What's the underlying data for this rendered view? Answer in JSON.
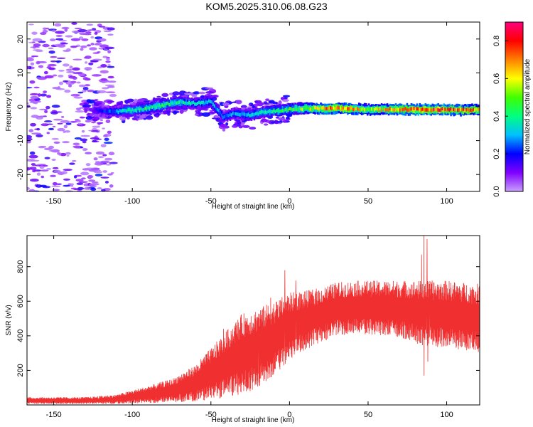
{
  "title": "KOM5.2025.310.06.08.G23",
  "colors": {
    "snr_line": "#f03030",
    "spec_low": "#c080ff"
  },
  "chart_data": [
    {
      "id": "spectrogram",
      "type": "heatmap",
      "xlabel": "Height of straight line (km)",
      "ylabel": "Frequency (Hz)",
      "xlim": [
        -167,
        121
      ],
      "ylim": [
        -25,
        25
      ],
      "xticks": [
        -150,
        -100,
        -50,
        0,
        50,
        100
      ],
      "yticks": [
        -20,
        -10,
        0,
        10,
        20
      ],
      "grid": false,
      "colorbar": {
        "label": "Normalized spectral amplitude",
        "range": [
          0,
          0.9
        ],
        "ticks": [
          0.0,
          0.2,
          0.4,
          0.6,
          0.8
        ],
        "colormap": [
          "#c8a0ff",
          "#8000ff",
          "#0000ff",
          "#00c0ff",
          "#00ff80",
          "#40ff00",
          "#ffff00",
          "#ff8000",
          "#ff0000",
          "#ff0080"
        ]
      },
      "ridge": [
        {
          "x": -125,
          "f": -1.0,
          "a": 0.15
        },
        {
          "x": -110,
          "f": -1.5,
          "a": 0.3
        },
        {
          "x": -100,
          "f": -1.0,
          "a": 0.4
        },
        {
          "x": -90,
          "f": -0.5,
          "a": 0.45
        },
        {
          "x": -80,
          "f": 0.5,
          "a": 0.45
        },
        {
          "x": -70,
          "f": 1.5,
          "a": 0.4
        },
        {
          "x": -60,
          "f": 1.0,
          "a": 0.35
        },
        {
          "x": -50,
          "f": 1.5,
          "a": 0.35
        },
        {
          "x": -42,
          "f": -3.0,
          "a": 0.3
        },
        {
          "x": -35,
          "f": -2.0,
          "a": 0.3
        },
        {
          "x": -25,
          "f": -2.5,
          "a": 0.35
        },
        {
          "x": -15,
          "f": -1.5,
          "a": 0.4
        },
        {
          "x": -5,
          "f": -1.0,
          "a": 0.45
        },
        {
          "x": 5,
          "f": -0.5,
          "a": 0.5
        },
        {
          "x": 20,
          "f": -0.5,
          "a": 0.7
        },
        {
          "x": 35,
          "f": -0.5,
          "a": 0.75
        },
        {
          "x": 50,
          "f": -0.8,
          "a": 0.6
        },
        {
          "x": 65,
          "f": -0.8,
          "a": 0.7
        },
        {
          "x": 80,
          "f": -0.8,
          "a": 0.8
        },
        {
          "x": 95,
          "f": -0.8,
          "a": 0.85
        },
        {
          "x": 110,
          "f": -1.0,
          "a": 0.75
        },
        {
          "x": 120,
          "f": -0.8,
          "a": 0.7
        }
      ]
    },
    {
      "id": "snr",
      "type": "line",
      "xlabel": "Height of straight line (km)",
      "ylabel": "SNR (v/v)",
      "xlim": [
        -167,
        121
      ],
      "ylim": [
        0,
        980
      ],
      "xticks": [
        -150,
        -100,
        -50,
        0,
        50,
        100
      ],
      "yticks": [
        200,
        400,
        600,
        800
      ],
      "grid": false,
      "envelope": [
        {
          "x": -167,
          "lo": 5,
          "hi": 45
        },
        {
          "x": -130,
          "lo": 5,
          "hi": 45
        },
        {
          "x": -110,
          "lo": 5,
          "hi": 60
        },
        {
          "x": -90,
          "lo": 10,
          "hi": 110
        },
        {
          "x": -75,
          "lo": 15,
          "hi": 150
        },
        {
          "x": -60,
          "lo": 20,
          "hi": 230
        },
        {
          "x": -50,
          "lo": 30,
          "hi": 330
        },
        {
          "x": -40,
          "lo": 40,
          "hi": 430
        },
        {
          "x": -30,
          "lo": 60,
          "hi": 530
        },
        {
          "x": -20,
          "lo": 100,
          "hi": 560
        },
        {
          "x": -10,
          "lo": 170,
          "hi": 600
        },
        {
          "x": 0,
          "lo": 260,
          "hi": 650
        },
        {
          "x": 10,
          "lo": 320,
          "hi": 660
        },
        {
          "x": 20,
          "lo": 360,
          "hi": 680
        },
        {
          "x": 30,
          "lo": 400,
          "hi": 710
        },
        {
          "x": 45,
          "lo": 410,
          "hi": 720
        },
        {
          "x": 60,
          "lo": 400,
          "hi": 720
        },
        {
          "x": 75,
          "lo": 380,
          "hi": 720
        },
        {
          "x": 85,
          "lo": 340,
          "hi": 720
        },
        {
          "x": 100,
          "lo": 330,
          "hi": 720
        },
        {
          "x": 121,
          "lo": 300,
          "hi": 700
        }
      ],
      "spikes": [
        {
          "x": -42,
          "y": 440
        },
        {
          "x": -20,
          "y": 500
        },
        {
          "x": -12,
          "y": 620
        },
        {
          "x": -3,
          "y": 780
        },
        {
          "x": 4,
          "y": 720
        },
        {
          "x": 84,
          "y": 870
        },
        {
          "x": 85.5,
          "y": 980
        },
        {
          "x": 87.5,
          "y": 960
        },
        {
          "x": 89,
          "y": 700
        },
        {
          "x": 85.6,
          "y": 170
        },
        {
          "x": 88,
          "y": 250
        }
      ]
    }
  ]
}
